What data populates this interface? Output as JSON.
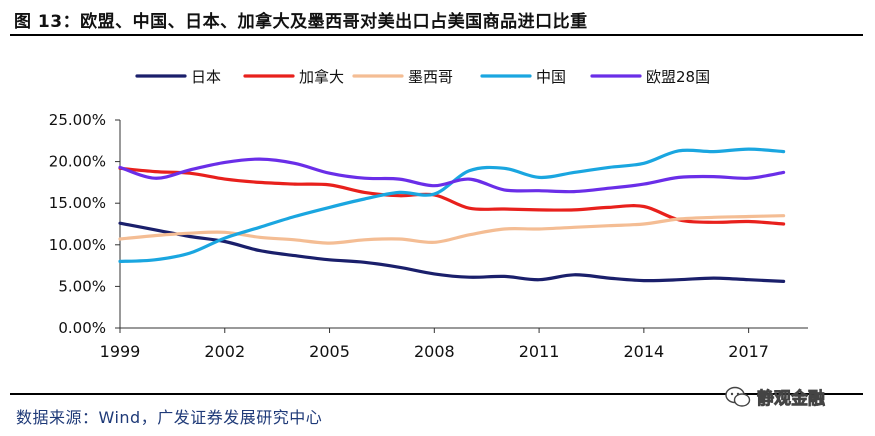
{
  "header": {
    "title": "图 13：欧盟、中国、日本、加拿大及墨西哥对美出口占美国商品进口比重"
  },
  "footer": {
    "source": "数据来源：Wind，广发证券发展研究中心"
  },
  "watermark": {
    "text": "静观金融"
  },
  "chart_data": {
    "type": "line",
    "title": "欧盟、中国、日本、加拿大及墨西哥对美出口占美国商品进口比重",
    "xlabel": "",
    "ylabel": "",
    "x": [
      1999,
      2000,
      2001,
      2002,
      2003,
      2004,
      2005,
      2006,
      2007,
      2008,
      2009,
      2010,
      2011,
      2012,
      2013,
      2014,
      2015,
      2016,
      2017,
      2018
    ],
    "xlim": [
      1999,
      2018.7
    ],
    "x_ticks": [
      1999,
      2002,
      2005,
      2008,
      2011,
      2014,
      2017
    ],
    "x_tick_labels": [
      "1999",
      "2002",
      "2005",
      "2008",
      "2011",
      "2014",
      "2017"
    ],
    "ylim": [
      0,
      25
    ],
    "y_ticks": [
      0,
      5,
      10,
      15,
      20,
      25
    ],
    "y_tick_labels": [
      "0.00%",
      "5.00%",
      "10.00%",
      "15.00%",
      "20.00%",
      "25.00%"
    ],
    "grid": false,
    "legend_position": "top",
    "series": [
      {
        "name": "日本",
        "color": "#1a1f6b",
        "values": [
          12.6,
          11.8,
          11.0,
          10.4,
          9.3,
          8.7,
          8.2,
          7.9,
          7.3,
          6.5,
          6.1,
          6.2,
          5.8,
          6.4,
          6.0,
          5.7,
          5.8,
          6.0,
          5.8,
          5.6
        ]
      },
      {
        "name": "加拿大",
        "color": "#e8201c",
        "values": [
          19.2,
          18.8,
          18.6,
          17.9,
          17.5,
          17.3,
          17.2,
          16.3,
          15.9,
          16.0,
          14.4,
          14.3,
          14.2,
          14.2,
          14.5,
          14.6,
          13.0,
          12.7,
          12.8,
          12.5
        ]
      },
      {
        "name": "墨西哥",
        "color": "#f4bd94",
        "values": [
          10.7,
          11.1,
          11.4,
          11.5,
          10.9,
          10.6,
          10.2,
          10.6,
          10.7,
          10.3,
          11.2,
          11.9,
          11.9,
          12.1,
          12.3,
          12.5,
          13.1,
          13.3,
          13.4,
          13.5
        ]
      },
      {
        "name": "中国",
        "color": "#1aa6e0",
        "values": [
          8.0,
          8.2,
          9.0,
          10.8,
          12.1,
          13.4,
          14.5,
          15.5,
          16.3,
          16.1,
          18.9,
          19.2,
          18.1,
          18.7,
          19.3,
          19.8,
          21.3,
          21.2,
          21.5,
          21.2
        ]
      },
      {
        "name": "欧盟28国",
        "color": "#6a2ee8",
        "values": [
          19.3,
          18.0,
          19.0,
          19.9,
          20.3,
          19.8,
          18.6,
          18.0,
          17.9,
          17.1,
          17.9,
          16.6,
          16.5,
          16.4,
          16.8,
          17.3,
          18.1,
          18.2,
          18.0,
          18.7
        ]
      }
    ]
  }
}
